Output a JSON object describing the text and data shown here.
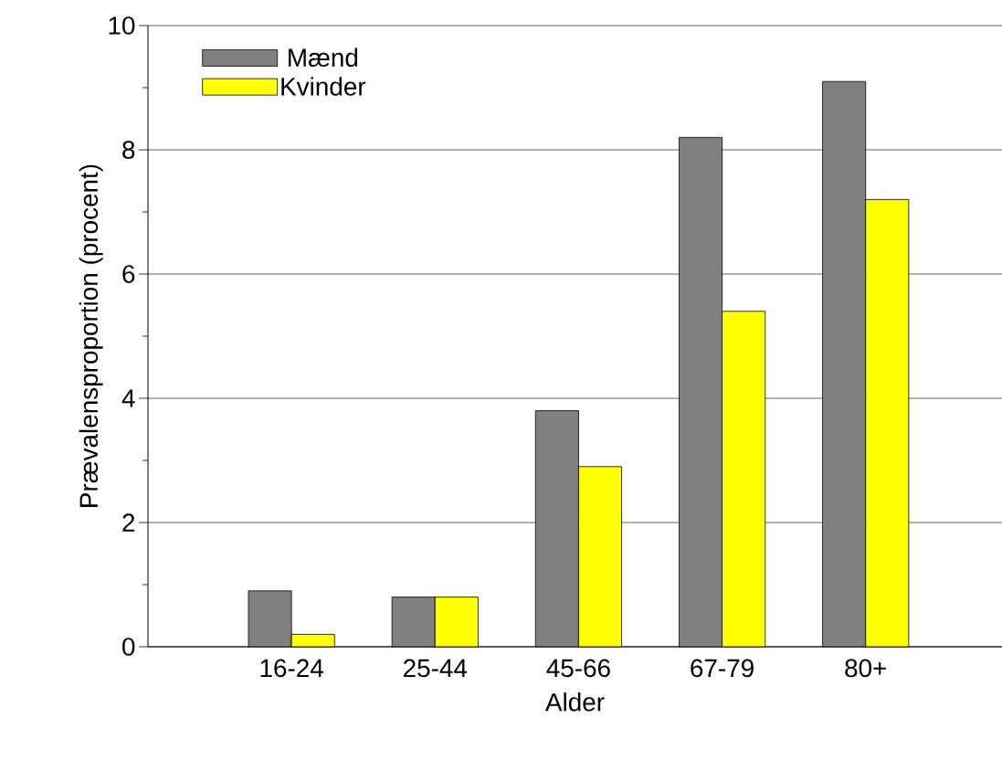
{
  "chart_data": {
    "type": "bar",
    "xlabel": "Alder",
    "ylabel": "Prævalensproportion (procent)",
    "categories": [
      "16-24",
      "25-44",
      "45-66",
      "67-79",
      "80+"
    ],
    "series": [
      {
        "name": "Mænd",
        "color": "#808080",
        "values": [
          0.9,
          0.8,
          3.8,
          8.2,
          9.1
        ]
      },
      {
        "name": "Kvinder",
        "color": "#ffff00",
        "values": [
          0.2,
          0.8,
          2.9,
          5.4,
          7.2
        ]
      }
    ],
    "ylim": [
      0,
      10
    ],
    "yticks": [
      0,
      2,
      4,
      6,
      8,
      10
    ],
    "grid": "y",
    "legend": "top left"
  }
}
